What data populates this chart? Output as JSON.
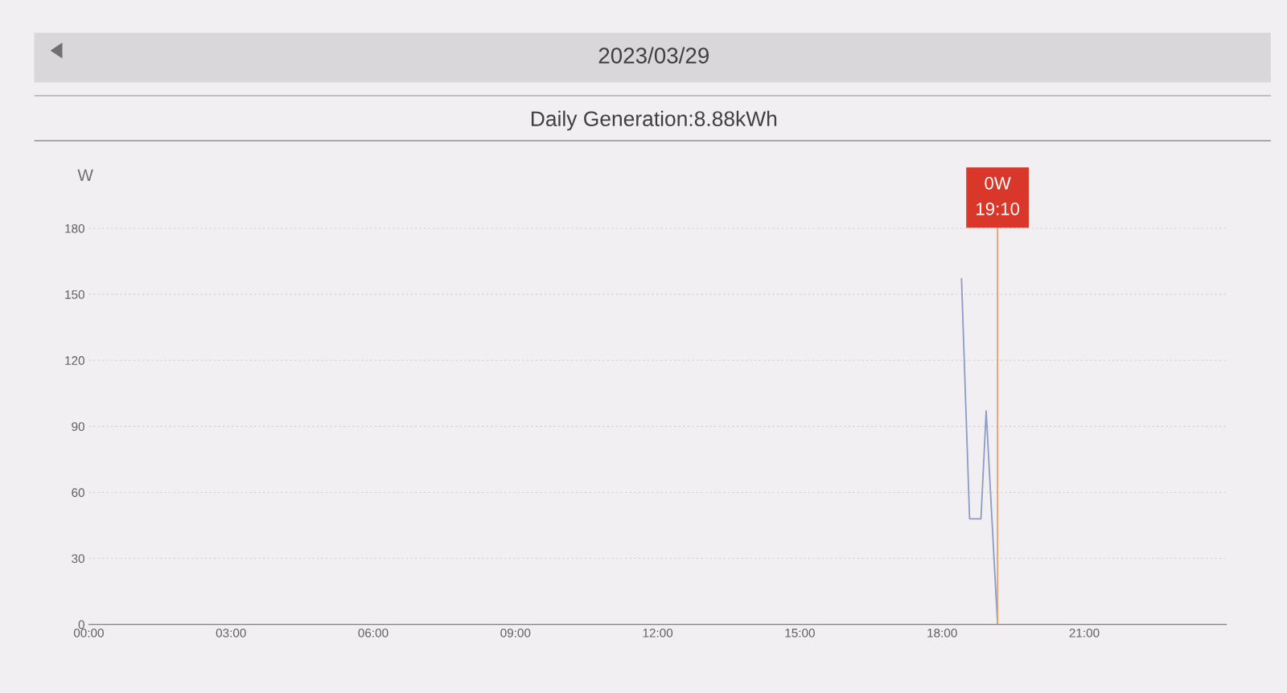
{
  "chart_data": {
    "type": "line",
    "title": "2023/03/29",
    "subtitle": "Daily Generation:8.88kWh",
    "ylabel": "W",
    "x": [
      18.41,
      18.58,
      18.82,
      18.93,
      19.17
    ],
    "series": [
      {
        "color": "#8c9cc8",
        "values": [
          157,
          48,
          48,
          97,
          0
        ]
      }
    ],
    "xlim": [
      0,
      24
    ],
    "ylim": [
      0,
      200
    ],
    "xticks": [
      {
        "value": 0,
        "label": "00:00"
      },
      {
        "value": 3,
        "label": "03:00"
      },
      {
        "value": 6,
        "label": "06:00"
      },
      {
        "value": 9,
        "label": "09:00"
      },
      {
        "value": 12,
        "label": "12:00"
      },
      {
        "value": 15,
        "label": "15:00"
      },
      {
        "value": 18,
        "label": "18:00"
      },
      {
        "value": 21,
        "label": "21:00"
      }
    ],
    "yticks": [
      0,
      30,
      60,
      90,
      120,
      150,
      180
    ],
    "grid": "y",
    "marker": "none",
    "line_style": "solid",
    "ref_lines": [
      {
        "axis": "x",
        "value": 19.17,
        "color": "#e8a070"
      }
    ],
    "annotations": [
      "0W\n19:10"
    ]
  }
}
